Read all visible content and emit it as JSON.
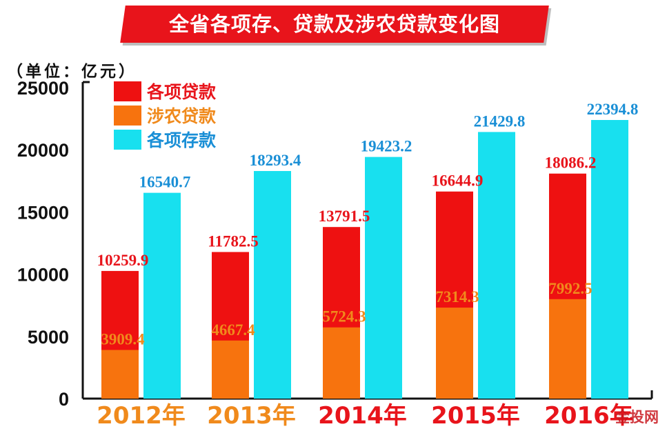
{
  "chart_data": {
    "type": "bar",
    "title": "全省各项存、贷款及涉农贷款变化图",
    "unit": "（单位：亿元）",
    "categories": [
      "2012年",
      "2013年",
      "2014年",
      "2015年",
      "2016年"
    ],
    "series": [
      {
        "name": "各项贷款",
        "color": "#ee1111",
        "values": [
          10259.9,
          11782.5,
          13791.5,
          16644.9,
          18086.2
        ]
      },
      {
        "name": "涉农贷款",
        "color": "#f7730e",
        "values": [
          3909.4,
          4667.4,
          5724.3,
          7314.3,
          7992.5
        ]
      },
      {
        "name": "各项存款",
        "color": "#18e0ef",
        "values": [
          16540.7,
          18293.4,
          19423.2,
          21429.8,
          22394.8
        ]
      }
    ],
    "value_labels": {
      "各项贷款": [
        "10259.9",
        "11782.5",
        "13791.5",
        "16644.9",
        "18086.2"
      ],
      "涉农贷款": [
        "3909.4",
        "4667.4",
        "5724.3",
        "7314.3",
        "7992.5"
      ],
      "各项存款": [
        "16540.7",
        "18293.4",
        "19423.2",
        "21429.8",
        "22394.8"
      ]
    },
    "y_ticks": [
      "0",
      "5000",
      "10000",
      "15000",
      "20000",
      "25000"
    ],
    "ylim": [
      0,
      25000
    ],
    "legend_position": "top-left",
    "grid": false,
    "category_label_colors": [
      "#f08a1c",
      "#f08a1c",
      "#e8141b",
      "#e8141b",
      "#e8141b"
    ],
    "label_colors": {
      "各项贷款": "#e8141b",
      "涉农贷款": "#f08a1c",
      "各项存款": "#1a8fd6"
    }
  },
  "watermark": "金投网"
}
